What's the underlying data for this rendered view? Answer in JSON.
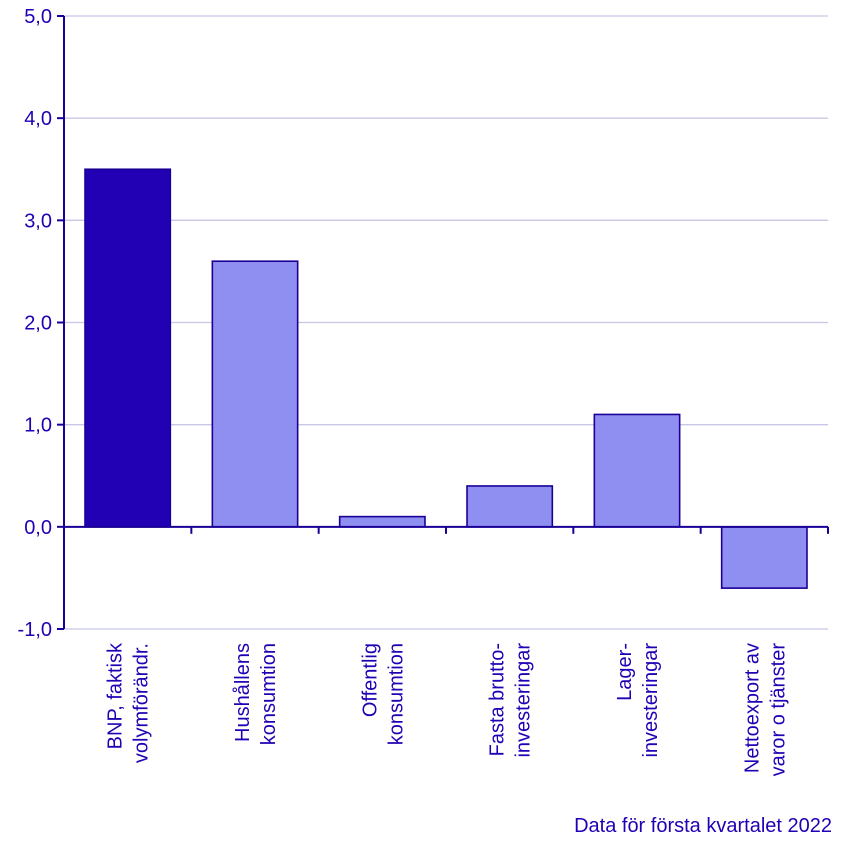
{
  "chart_data": {
    "type": "bar",
    "categories": [
      [
        "BNP, faktisk",
        "volymförändr."
      ],
      [
        "Hushållens",
        "konsumtion"
      ],
      [
        "Offentlig",
        "konsumtion"
      ],
      [
        "Fasta brutto-",
        "investeringar"
      ],
      [
        "Lager-",
        "investeringar"
      ],
      [
        "Nettoexport av",
        "varor o tjänster"
      ]
    ],
    "values": [
      3.5,
      2.6,
      0.1,
      0.4,
      1.1,
      -0.6
    ],
    "highlight_index": 0,
    "ylim": [
      -1.0,
      5.0
    ],
    "yticks": [
      -1.0,
      0.0,
      1.0,
      2.0,
      3.0,
      4.0,
      5.0
    ],
    "ytick_labels": [
      "-1,0",
      "0,0",
      "1,0",
      "2,0",
      "3,0",
      "4,0",
      "5,0"
    ],
    "grid": true,
    "xlabel": "",
    "ylabel": "",
    "title": "",
    "note": "Data för första kvartalet 2022"
  },
  "colors": {
    "highlight_bar": "#2200b4",
    "bar": "#8f8ff2",
    "bar_outline": "#1a0096",
    "axis": "#1a0096",
    "grid": "#c8c8e6",
    "text": "#2200b4"
  }
}
